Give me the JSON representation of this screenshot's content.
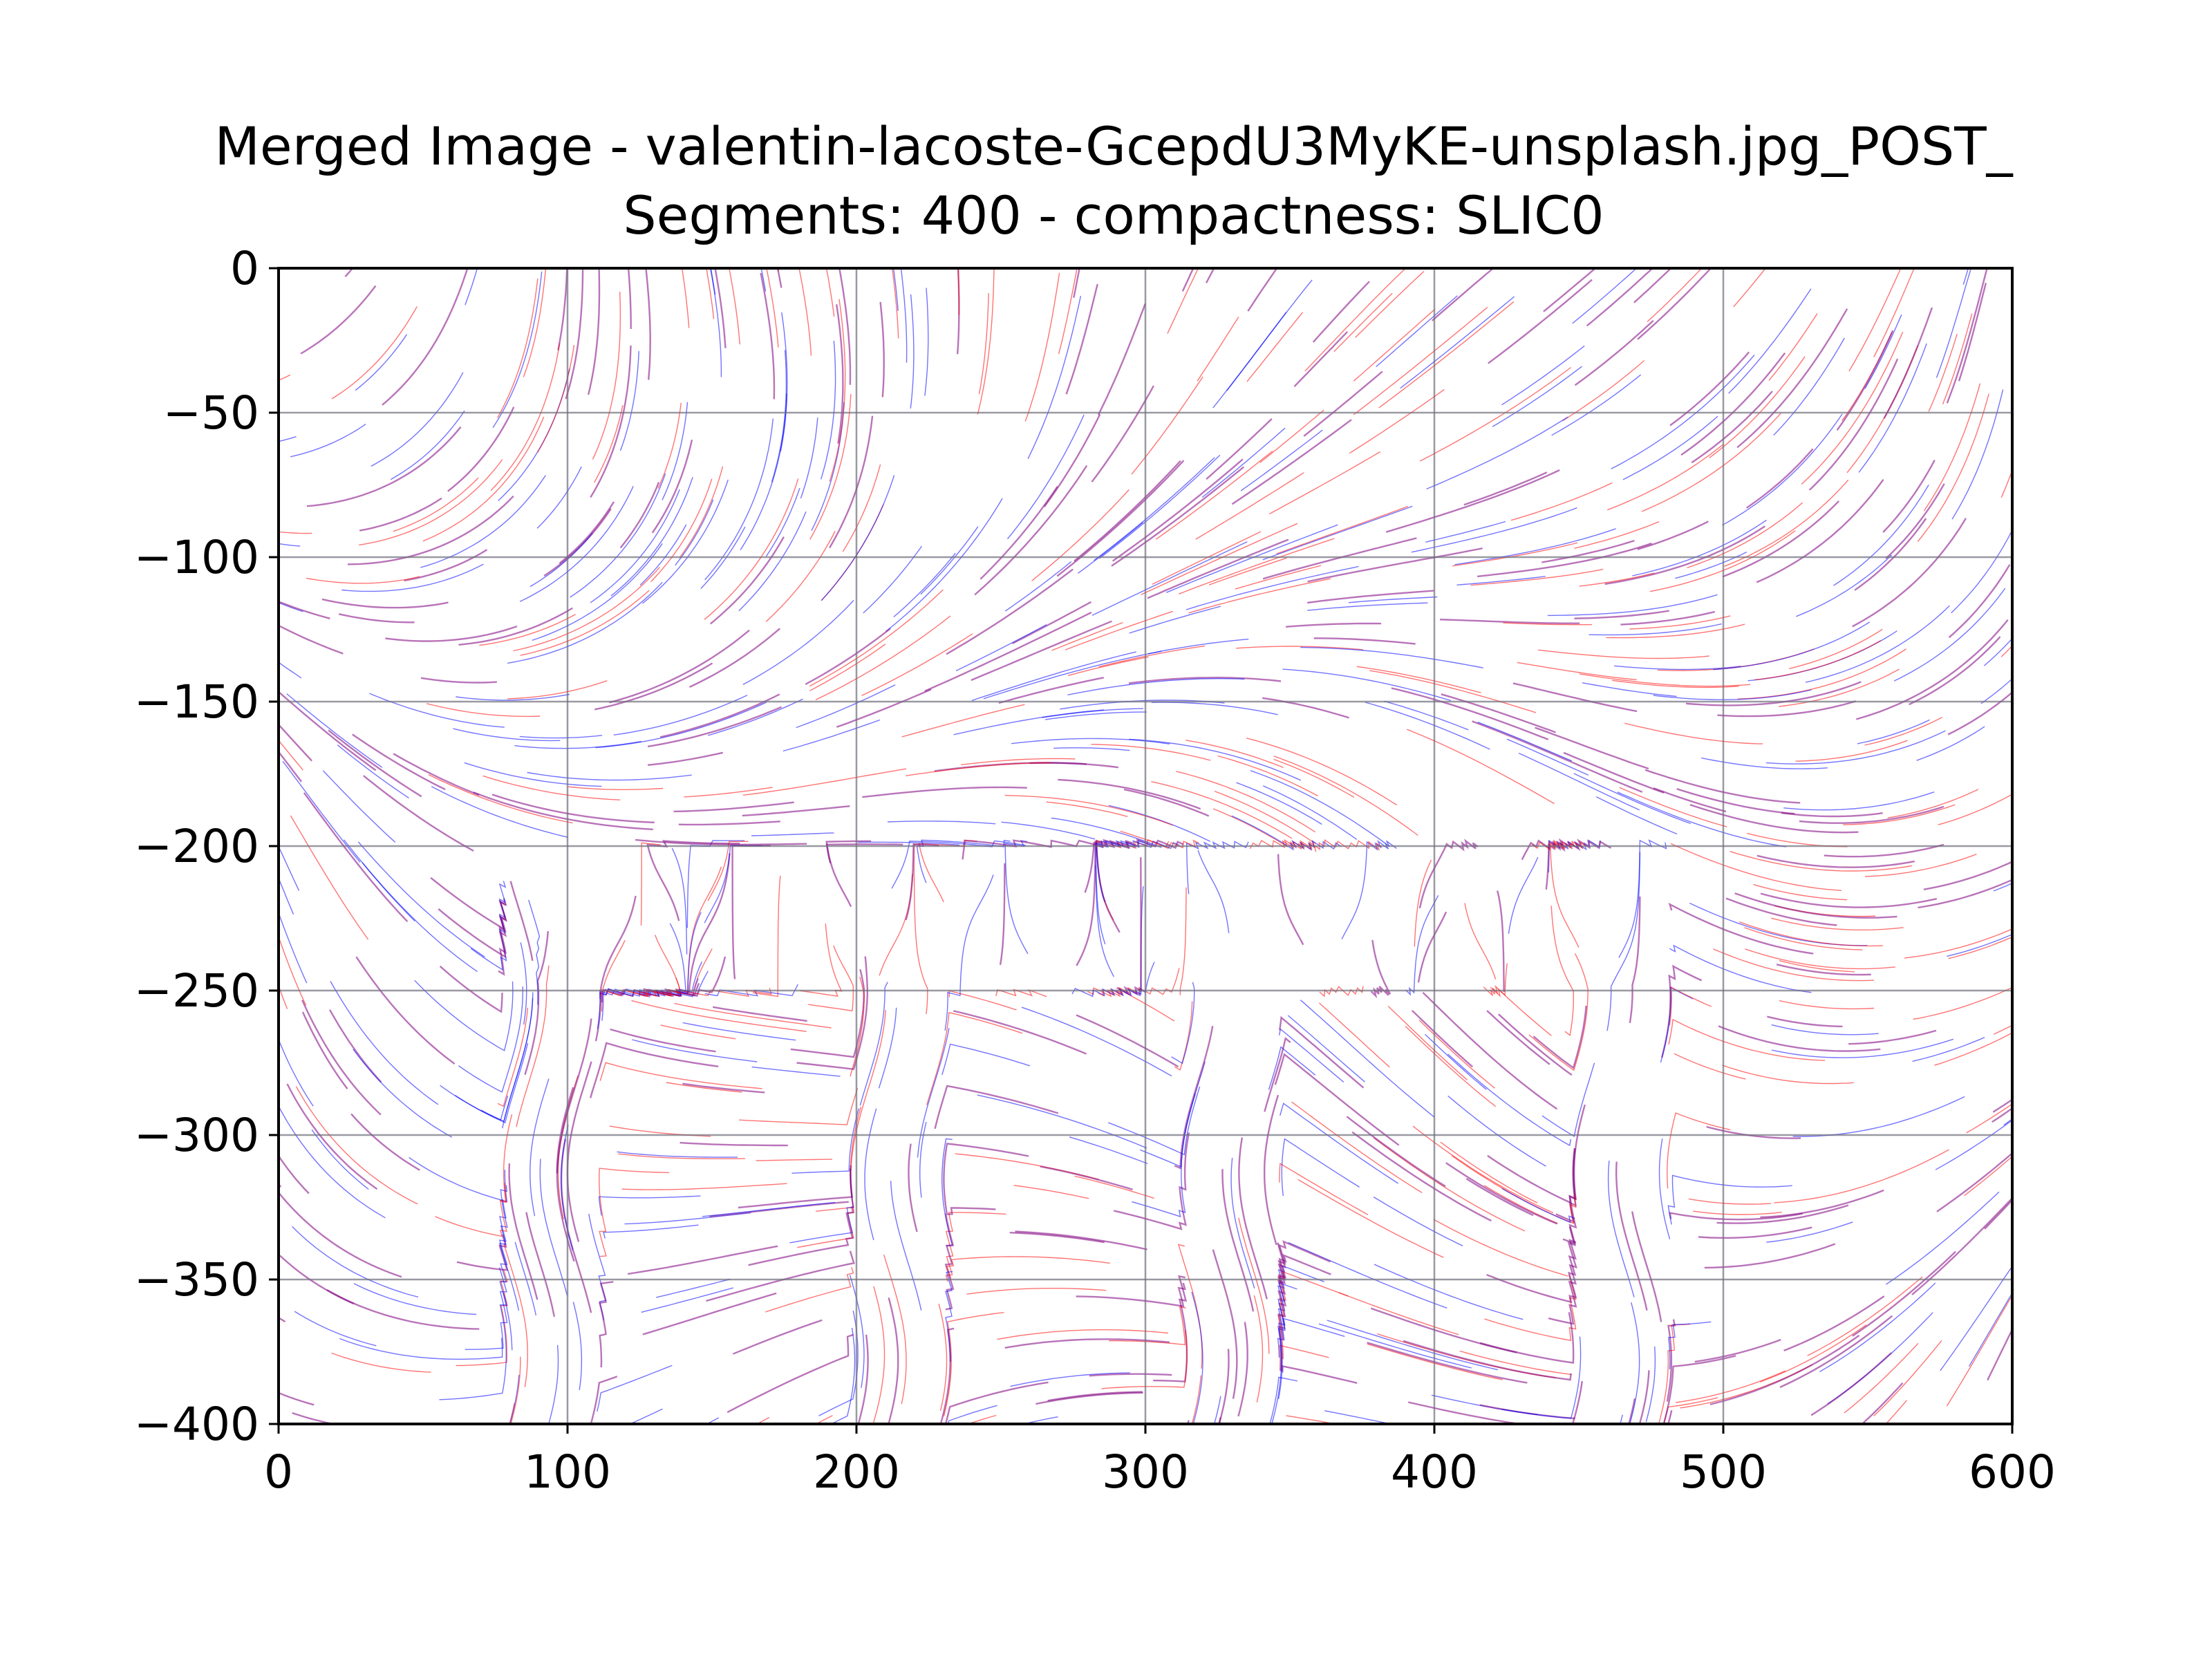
{
  "chart_data": {
    "type": "streamplot",
    "title_line1": "Merged Image - valentin-lacoste-GcepdU3MyKE-unsplash.jpg_POST_",
    "title_line2": "Segments: 400 - compactness: SLIC0",
    "xlabel": "",
    "ylabel": "",
    "xlim": [
      0,
      600
    ],
    "ylim": [
      -400,
      0
    ],
    "x_ticks": [
      0,
      100,
      200,
      300,
      400,
      500,
      600
    ],
    "x_tick_labels": [
      "0",
      "100",
      "200",
      "300",
      "400",
      "500",
      "600"
    ],
    "y_ticks": [
      0,
      -50,
      -100,
      -150,
      -200,
      -250,
      -300,
      -350,
      -400
    ],
    "y_tick_labels": [
      "0",
      "−50",
      "−100",
      "−150",
      "−200",
      "−250",
      "−300",
      "−350",
      "−400"
    ],
    "grid": true,
    "stream_colors": [
      "#ff0000",
      "#0000ff",
      "#800080"
    ],
    "grid_color": "#6e6e7a"
  }
}
